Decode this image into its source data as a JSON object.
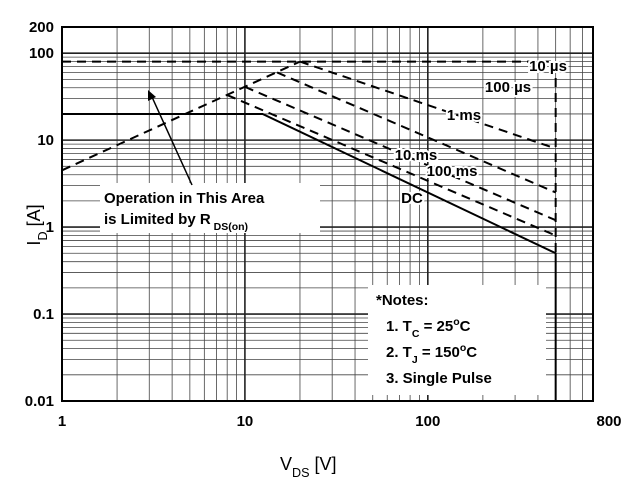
{
  "chart_data": {
    "type": "line",
    "x_label": [
      {
        "t": "V"
      },
      {
        "t": "DS",
        "sub": true
      },
      {
        "t": " [V]"
      }
    ],
    "y_label": [
      {
        "t": "I"
      },
      {
        "t": "D",
        "sub": true
      },
      {
        "t": " [A]"
      }
    ],
    "log_x": true,
    "log_y": true,
    "grid": true,
    "xlim": [
      1,
      800
    ],
    "ylim": [
      0.01,
      200
    ],
    "xticks": [
      1,
      10,
      100,
      800
    ],
    "yticks": [
      0.01,
      0.1,
      1,
      10,
      100,
      200
    ],
    "xgrid_minor": [
      2,
      3,
      4,
      5,
      6,
      7,
      8,
      9,
      20,
      30,
      40,
      50,
      60,
      70,
      80,
      90,
      200,
      300,
      400,
      500,
      600,
      700
    ],
    "ygrid_minor": [
      0.02,
      0.03,
      0.04,
      0.05,
      0.06,
      0.07,
      0.08,
      0.09,
      0.2,
      0.3,
      0.4,
      0.5,
      0.6,
      0.7,
      0.8,
      0.9,
      2,
      3,
      4,
      5,
      6,
      7,
      8,
      9,
      20,
      30,
      40,
      50,
      60,
      70,
      80,
      90
    ],
    "series": [
      {
        "name": null,
        "color": "#000000",
        "dashed": true,
        "x": [
          1,
          20
        ],
        "values": [
          4.5,
          80
        ]
      },
      {
        "name": "10 µs",
        "color": "#000000",
        "dashed": true,
        "x": [
          1,
          500,
          500
        ],
        "values": [
          80,
          80,
          0.5
        ]
      },
      {
        "name": "100 µs",
        "color": "#000000",
        "dashed": true,
        "x": [
          20,
          500
        ],
        "values": [
          80,
          8
        ]
      },
      {
        "name": "1 ms",
        "color": "#000000",
        "dashed": true,
        "x": [
          15,
          500
        ],
        "values": [
          60,
          2.5
        ]
      },
      {
        "name": "10 ms",
        "color": "#000000",
        "dashed": true,
        "x": [
          10,
          500
        ],
        "values": [
          41,
          1.2
        ]
      },
      {
        "name": "100 ms",
        "color": "#000000",
        "dashed": true,
        "x": [
          8,
          500
        ],
        "values": [
          33,
          0.8
        ]
      },
      {
        "name": "DC",
        "color": "#000000",
        "dashed": false,
        "x": [
          1,
          12.5,
          500,
          500
        ],
        "values": [
          20,
          20,
          0.5,
          0.01
        ]
      }
    ],
    "annotation": [
      [
        {
          "t": "Operation in This Area"
        }
      ],
      [
        {
          "t": "is Limited by R"
        },
        {
          "t": " DS(on)",
          "sub": true
        }
      ]
    ],
    "notes": [
      [
        {
          "t": "*Notes:"
        }
      ],
      [
        {
          "t": "1. T"
        },
        {
          "t": "C",
          "sub": true
        },
        {
          "t": " = 25"
        },
        {
          "t": "o",
          "sup": true
        },
        {
          "t": "C"
        }
      ],
      [
        {
          "t": "2. T"
        },
        {
          "t": "J",
          "sub": true
        },
        {
          "t": " = 150"
        },
        {
          "t": "o",
          "sup": true
        },
        {
          "t": "C"
        }
      ],
      [
        {
          "t": "3. Single Pulse"
        }
      ]
    ]
  }
}
